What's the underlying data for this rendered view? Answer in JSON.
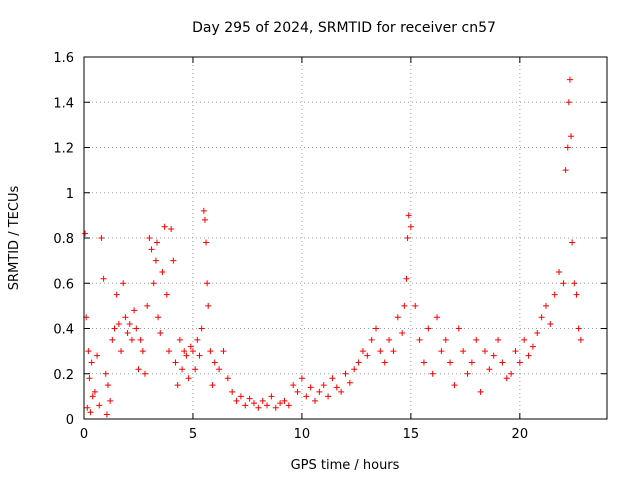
{
  "chart_data": {
    "type": "scatter",
    "title": "Day 295 of 2024, SRMTID for receiver cn57",
    "xlabel": "GPS time / hours",
    "ylabel": "SRMTID / TECUs",
    "xlim": [
      0,
      24
    ],
    "ylim": [
      0,
      1.6
    ],
    "xticks": [
      0,
      5,
      10,
      15,
      20
    ],
    "xtick_labels": [
      "0",
      "5",
      "10",
      "15",
      "20"
    ],
    "yticks": [
      0,
      0.2,
      0.4,
      0.6,
      0.8,
      1.0,
      1.2,
      1.4,
      1.6
    ],
    "ytick_labels": [
      "0",
      "0.2",
      "0.4",
      "0.6",
      "0.8",
      "1",
      "1.2",
      "1.4",
      "1.6"
    ],
    "grid": true,
    "marker": "+",
    "color": "#ff0000",
    "series": [
      {
        "name": "cn57",
        "x": [
          0.05,
          0.1,
          0.15,
          0.2,
          0.25,
          0.3,
          0.35,
          0.4,
          0.5,
          0.6,
          0.7,
          0.8,
          0.9,
          1.0,
          1.05,
          1.1,
          1.2,
          1.3,
          1.4,
          1.5,
          1.6,
          1.7,
          1.8,
          1.9,
          2.0,
          2.1,
          2.2,
          2.3,
          2.4,
          2.5,
          2.6,
          2.7,
          2.8,
          2.9,
          3.0,
          3.1,
          3.2,
          3.3,
          3.35,
          3.4,
          3.5,
          3.6,
          3.7,
          3.8,
          3.9,
          4.0,
          4.1,
          4.2,
          4.3,
          4.4,
          4.5,
          4.6,
          4.7,
          4.8,
          4.9,
          5.0,
          5.1,
          5.2,
          5.3,
          5.4,
          5.5,
          5.55,
          5.6,
          5.65,
          5.7,
          5.8,
          5.9,
          6.0,
          6.2,
          6.4,
          6.6,
          6.8,
          7.0,
          7.2,
          7.4,
          7.6,
          7.8,
          8.0,
          8.2,
          8.4,
          8.6,
          8.8,
          9.0,
          9.2,
          9.4,
          9.6,
          9.8,
          10.0,
          10.2,
          10.4,
          10.6,
          10.8,
          11.0,
          11.2,
          11.4,
          11.6,
          11.8,
          12.0,
          12.2,
          12.4,
          12.6,
          12.8,
          13.0,
          13.2,
          13.4,
          13.6,
          13.8,
          14.0,
          14.2,
          14.4,
          14.6,
          14.7,
          14.8,
          14.85,
          14.9,
          15.0,
          15.2,
          15.4,
          15.6,
          15.8,
          16.0,
          16.2,
          16.4,
          16.6,
          16.8,
          17.0,
          17.2,
          17.4,
          17.6,
          17.8,
          18.0,
          18.2,
          18.4,
          18.6,
          18.8,
          19.0,
          19.2,
          19.4,
          19.6,
          19.8,
          20.0,
          20.2,
          20.4,
          20.6,
          20.8,
          21.0,
          21.2,
          21.4,
          21.6,
          21.8,
          22.0,
          22.1,
          22.2,
          22.25,
          22.3,
          22.35,
          22.4,
          22.5,
          22.6,
          22.7,
          22.8
        ],
        "y": [
          0.82,
          0.45,
          0.05,
          0.3,
          0.18,
          0.03,
          0.25,
          0.1,
          0.12,
          0.28,
          0.06,
          0.8,
          0.62,
          0.2,
          0.02,
          0.15,
          0.08,
          0.35,
          0.4,
          0.55,
          0.42,
          0.3,
          0.6,
          0.45,
          0.38,
          0.42,
          0.35,
          0.48,
          0.4,
          0.22,
          0.35,
          0.3,
          0.2,
          0.5,
          0.8,
          0.75,
          0.6,
          0.7,
          0.78,
          0.45,
          0.38,
          0.65,
          0.85,
          0.55,
          0.3,
          0.84,
          0.7,
          0.25,
          0.15,
          0.35,
          0.22,
          0.3,
          0.28,
          0.18,
          0.32,
          0.3,
          0.22,
          0.35,
          0.28,
          0.4,
          0.92,
          0.88,
          0.78,
          0.6,
          0.5,
          0.3,
          0.15,
          0.25,
          0.22,
          0.3,
          0.18,
          0.12,
          0.08,
          0.1,
          0.06,
          0.09,
          0.07,
          0.05,
          0.08,
          0.06,
          0.1,
          0.05,
          0.07,
          0.08,
          0.06,
          0.15,
          0.12,
          0.18,
          0.1,
          0.14,
          0.08,
          0.12,
          0.15,
          0.1,
          0.18,
          0.14,
          0.12,
          0.2,
          0.16,
          0.22,
          0.25,
          0.3,
          0.28,
          0.35,
          0.4,
          0.3,
          0.25,
          0.35,
          0.3,
          0.45,
          0.38,
          0.5,
          0.62,
          0.8,
          0.9,
          0.85,
          0.5,
          0.35,
          0.25,
          0.4,
          0.2,
          0.45,
          0.3,
          0.35,
          0.25,
          0.15,
          0.4,
          0.3,
          0.2,
          0.25,
          0.35,
          0.12,
          0.3,
          0.22,
          0.28,
          0.35,
          0.25,
          0.18,
          0.2,
          0.3,
          0.25,
          0.35,
          0.28,
          0.32,
          0.38,
          0.45,
          0.5,
          0.42,
          0.55,
          0.65,
          0.6,
          1.1,
          1.2,
          1.4,
          1.5,
          1.25,
          0.78,
          0.6,
          0.55,
          0.4,
          0.35
        ]
      }
    ]
  }
}
